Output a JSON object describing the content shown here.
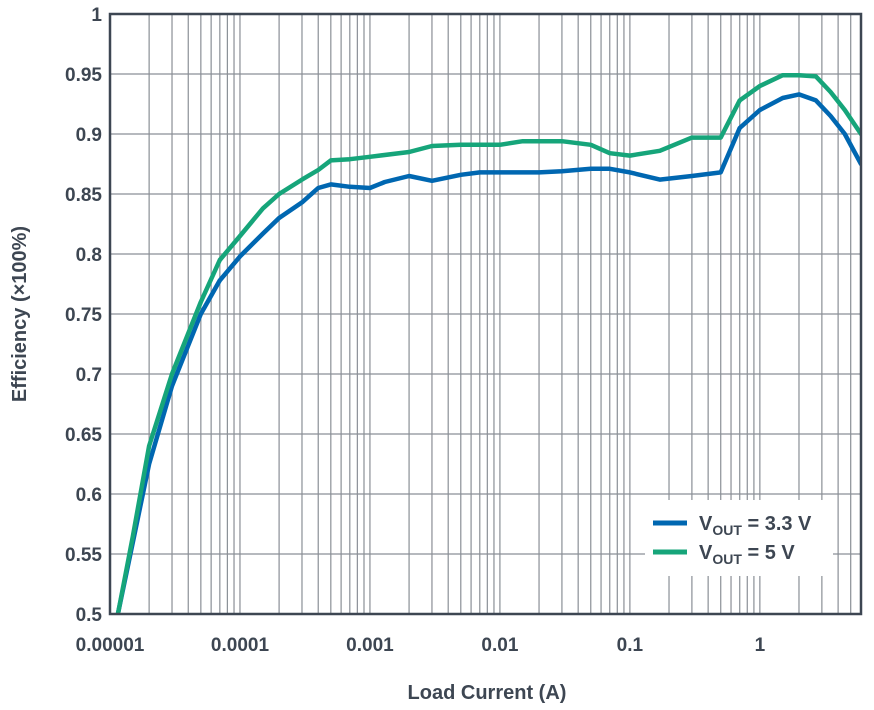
{
  "chart_data": {
    "type": "line",
    "title": "",
    "xlabel": "Load Current (A)",
    "ylabel": "Efficiency (×100%)",
    "xscale": "log",
    "xlim": [
      1e-05,
      6
    ],
    "ylim": [
      0.5,
      1.0
    ],
    "grid": true,
    "legend_position": "bottom-right",
    "x_ticks": [
      {
        "value": 1e-05,
        "label": "0.00001"
      },
      {
        "value": 0.0001,
        "label": "0.0001"
      },
      {
        "value": 0.001,
        "label": "0.001"
      },
      {
        "value": 0.01,
        "label": "0.01"
      },
      {
        "value": 0.1,
        "label": "0.1"
      },
      {
        "value": 1,
        "label": "1"
      }
    ],
    "y_ticks": [
      {
        "value": 0.5,
        "label": "0.5"
      },
      {
        "value": 0.55,
        "label": "0.55"
      },
      {
        "value": 0.6,
        "label": "0.6"
      },
      {
        "value": 0.65,
        "label": "0.65"
      },
      {
        "value": 0.7,
        "label": "0.7"
      },
      {
        "value": 0.75,
        "label": "0.75"
      },
      {
        "value": 0.8,
        "label": "0.8"
      },
      {
        "value": 0.85,
        "label": "0.85"
      },
      {
        "value": 0.9,
        "label": "0.9"
      },
      {
        "value": 0.95,
        "label": "0.95"
      },
      {
        "value": 1.0,
        "label": "1"
      }
    ],
    "series": [
      {
        "name": "VOUT = 3.3 V",
        "legend": {
          "main": "V",
          "sub": "OUT",
          "rest": " = 3.3 V"
        },
        "color": "#0067b1",
        "points": [
          [
            1.15e-05,
            0.5
          ],
          [
            1.5e-05,
            0.56
          ],
          [
            2e-05,
            0.625
          ],
          [
            3e-05,
            0.69
          ],
          [
            5e-05,
            0.75
          ],
          [
            7e-05,
            0.778
          ],
          [
            0.0001,
            0.798
          ],
          [
            0.00015,
            0.817
          ],
          [
            0.0002,
            0.83
          ],
          [
            0.0003,
            0.843
          ],
          [
            0.0004,
            0.855
          ],
          [
            0.0005,
            0.858
          ],
          [
            0.0007,
            0.856
          ],
          [
            0.001,
            0.855
          ],
          [
            0.0013,
            0.86
          ],
          [
            0.002,
            0.865
          ],
          [
            0.003,
            0.861
          ],
          [
            0.005,
            0.866
          ],
          [
            0.007,
            0.868
          ],
          [
            0.01,
            0.868
          ],
          [
            0.02,
            0.868
          ],
          [
            0.03,
            0.869
          ],
          [
            0.05,
            0.871
          ],
          [
            0.07,
            0.871
          ],
          [
            0.1,
            0.868
          ],
          [
            0.17,
            0.862
          ],
          [
            0.3,
            0.865
          ],
          [
            0.5,
            0.868
          ],
          [
            0.7,
            0.905
          ],
          [
            1,
            0.92
          ],
          [
            1.5,
            0.93
          ],
          [
            2,
            0.933
          ],
          [
            2.7,
            0.928
          ],
          [
            3.5,
            0.915
          ],
          [
            4.5,
            0.9
          ],
          [
            6,
            0.875
          ]
        ]
      },
      {
        "name": "VOUT = 5 V",
        "legend": {
          "main": "V",
          "sub": "OUT",
          "rest": " = 5 V"
        },
        "color": "#16a57a",
        "points": [
          [
            1.15e-05,
            0.5
          ],
          [
            1.5e-05,
            0.565
          ],
          [
            2e-05,
            0.64
          ],
          [
            3e-05,
            0.7
          ],
          [
            5e-05,
            0.76
          ],
          [
            7e-05,
            0.795
          ],
          [
            0.0001,
            0.815
          ],
          [
            0.00015,
            0.838
          ],
          [
            0.0002,
            0.85
          ],
          [
            0.0003,
            0.862
          ],
          [
            0.0004,
            0.87
          ],
          [
            0.0005,
            0.878
          ],
          [
            0.0007,
            0.879
          ],
          [
            0.001,
            0.881
          ],
          [
            0.002,
            0.885
          ],
          [
            0.003,
            0.89
          ],
          [
            0.005,
            0.891
          ],
          [
            0.01,
            0.891
          ],
          [
            0.015,
            0.894
          ],
          [
            0.02,
            0.894
          ],
          [
            0.03,
            0.894
          ],
          [
            0.05,
            0.891
          ],
          [
            0.07,
            0.884
          ],
          [
            0.1,
            0.882
          ],
          [
            0.17,
            0.886
          ],
          [
            0.3,
            0.897
          ],
          [
            0.5,
            0.897
          ],
          [
            0.7,
            0.928
          ],
          [
            1,
            0.94
          ],
          [
            1.5,
            0.949
          ],
          [
            2,
            0.949
          ],
          [
            2.7,
            0.948
          ],
          [
            3.5,
            0.935
          ],
          [
            4.5,
            0.92
          ],
          [
            6,
            0.9
          ]
        ]
      }
    ]
  }
}
